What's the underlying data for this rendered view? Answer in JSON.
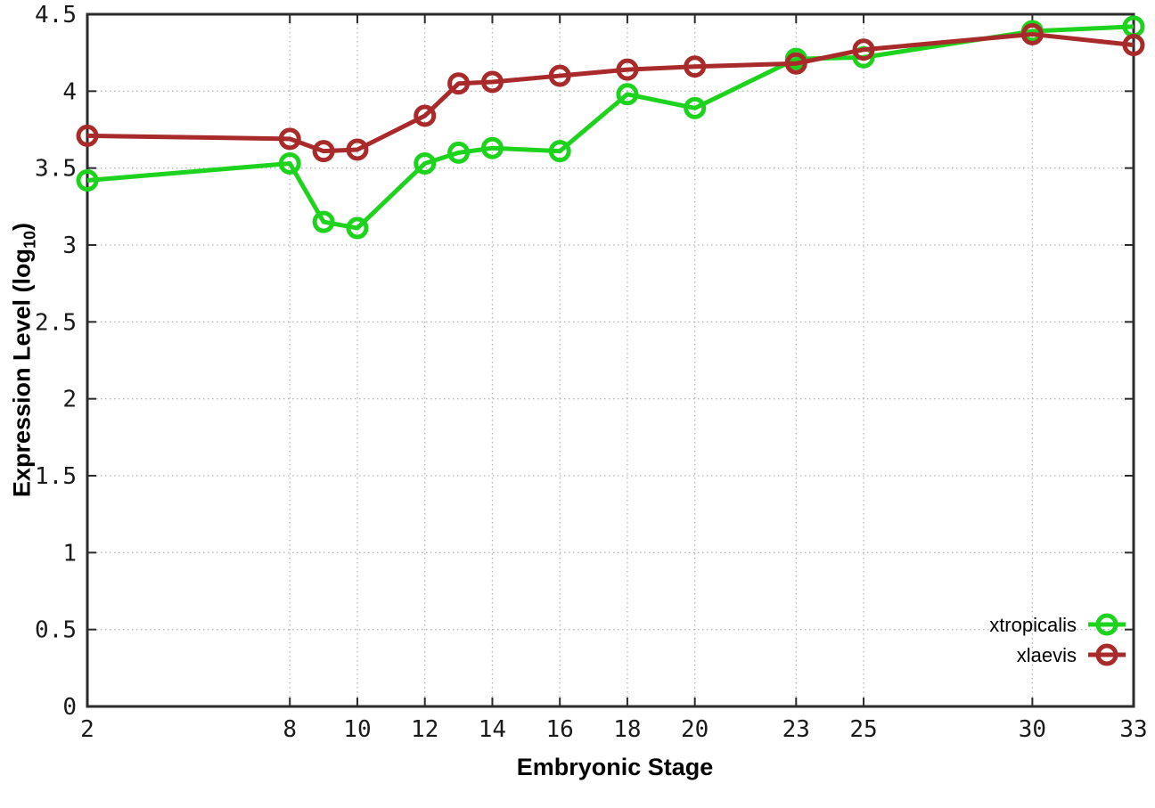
{
  "chart_data": {
    "type": "line",
    "title": "",
    "xlabel": "Embryonic Stage",
    "ylabel": "Expression Level (log10)",
    "ylabel_main": "Expression Level (log",
    "ylabel_sub": "10",
    "ylabel_close": ")",
    "x": [
      2,
      8,
      9,
      10,
      12,
      13,
      14,
      16,
      18,
      20,
      23,
      25,
      30,
      33
    ],
    "series": [
      {
        "name": "xtropicalis",
        "color": "#1ed31e",
        "marker": "open-circle",
        "values": [
          3.42,
          3.53,
          3.15,
          3.11,
          3.53,
          3.6,
          3.63,
          3.61,
          3.98,
          3.89,
          4.21,
          4.22,
          4.39,
          4.42
        ]
      },
      {
        "name": "xlaevis",
        "color": "#a82a2a",
        "marker": "open-circle",
        "values": [
          3.71,
          3.69,
          3.61,
          3.62,
          3.84,
          4.05,
          4.06,
          4.1,
          4.14,
          4.16,
          4.18,
          4.27,
          4.37,
          4.3
        ]
      }
    ],
    "xlim": [
      2,
      33
    ],
    "ylim": [
      0,
      4.5
    ],
    "xticks": [
      2,
      8,
      10,
      12,
      14,
      16,
      18,
      20,
      23,
      25,
      30,
      33
    ],
    "xtick_labels": [
      "2",
      "8",
      "10",
      "12",
      "14",
      "16",
      "18",
      "20",
      "23",
      "25",
      "30",
      "33"
    ],
    "yticks": [
      0,
      0.5,
      1,
      1.5,
      2,
      2.5,
      3,
      3.5,
      4,
      4.5
    ],
    "ytick_labels": [
      "0",
      "0.5",
      "1",
      "1.5",
      "2",
      "2.5",
      "3",
      "3.5",
      "4",
      "4.5"
    ],
    "grid": true,
    "legend_position": "bottom-right",
    "colors": {
      "background": "#ffffff",
      "axis": "#2b2b2b",
      "grid": "#b8b8b8",
      "text": "#000000"
    }
  }
}
